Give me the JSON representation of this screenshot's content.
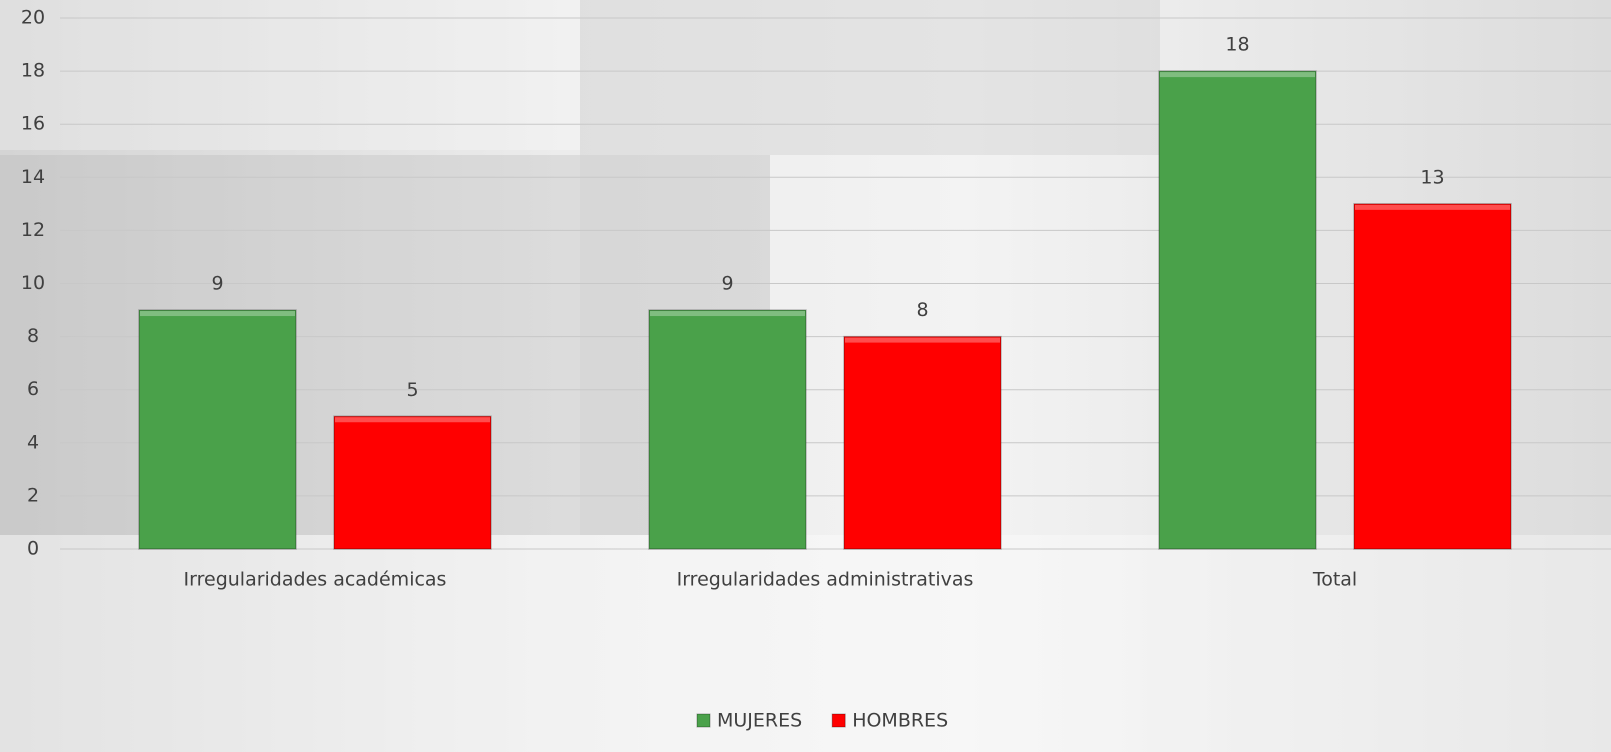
{
  "chart_data": {
    "type": "bar",
    "categories": [
      "Irregularidades académicas",
      "Irregularidades administrativas",
      "Total"
    ],
    "series": [
      {
        "name": "MUJERES",
        "color": "#4aa14a",
        "values": [
          9,
          9,
          18
        ]
      },
      {
        "name": "HOMBRES",
        "color": "#ff0000",
        "values": [
          5,
          8,
          13
        ]
      }
    ],
    "ylim": [
      0,
      20
    ],
    "yticks": [
      0,
      2,
      4,
      6,
      8,
      10,
      12,
      14,
      16,
      18,
      20
    ],
    "grid": true,
    "legend": "bottom"
  }
}
